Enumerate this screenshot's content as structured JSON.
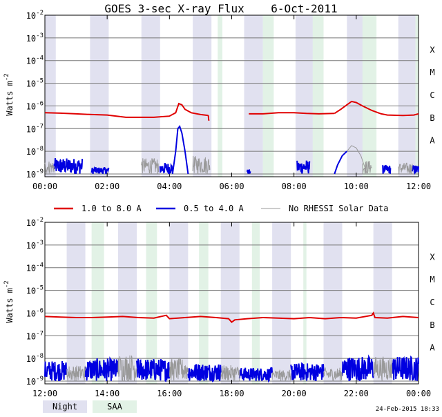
{
  "chart_data": {
    "type": "line",
    "title": "GOES 3-sec X-ray Flux",
    "date": "6-Oct-2011",
    "footer_timestamp": "24-Feb-2015 18:33",
    "ylabel": "Watts m",
    "ylabel_exponent": "-2",
    "y_scale": "log",
    "ylim_exponents": [
      -9,
      -2
    ],
    "ytick_exponents": [
      -9,
      -8,
      -7,
      -6,
      -5,
      -4,
      -3,
      -2
    ],
    "ytick_base": "10",
    "ytick_labels": [
      "10^-9",
      "10^-8",
      "10^-7",
      "10^-6",
      "10^-5",
      "10^-4",
      "10^-3",
      "10^-2"
    ],
    "flare_classes": [
      {
        "label": "X",
        "exponent": -3.5
      },
      {
        "label": "M",
        "exponent": -4.5
      },
      {
        "label": "C",
        "exponent": -5.5
      },
      {
        "label": "B",
        "exponent": -6.5
      },
      {
        "label": "A",
        "exponent": -7.5
      }
    ],
    "legend": {
      "series": [
        {
          "name": "1.0 to 8.0 A",
          "color": "#e00000"
        },
        {
          "name": "0.5 to 4.0 A",
          "color": "#0000e0"
        },
        {
          "name": "No RHESSI Solar Data",
          "color": "#999999"
        }
      ],
      "bands": [
        {
          "name": "Night",
          "color": "#e1e1f0"
        },
        {
          "name": "SAA",
          "color": "#e2f2e6"
        }
      ]
    },
    "panels": [
      {
        "xlim_hours": [
          0,
          12
        ],
        "xtick_labels": [
          "00:00",
          "02:00",
          "04:00",
          "06:00",
          "08:00",
          "10:00",
          "12:00"
        ],
        "night_intervals": [
          [
            0.0,
            0.35
          ],
          [
            1.45,
            2.05
          ],
          [
            3.1,
            3.7
          ],
          [
            4.75,
            5.35
          ],
          [
            6.4,
            7.0
          ],
          [
            8.05,
            8.65
          ],
          [
            9.7,
            10.3
          ],
          [
            11.35,
            11.95
          ]
        ],
        "saa_intervals": [
          [
            5.55,
            5.7
          ],
          [
            7.0,
            7.35
          ],
          [
            8.6,
            8.95
          ],
          [
            10.2,
            10.65
          ],
          [
            11.9,
            12.0
          ]
        ],
        "series": [
          {
            "name": "1.0 to 8.0 A",
            "color": "#e00000",
            "segments": [
              {
                "points": [
                  [
                    0,
                    -6.3
                  ],
                  [
                    0.5,
                    -6.32
                  ],
                  [
                    1.0,
                    -6.35
                  ],
                  [
                    1.5,
                    -6.38
                  ],
                  [
                    2.0,
                    -6.4
                  ],
                  [
                    2.3,
                    -6.45
                  ],
                  [
                    2.6,
                    -6.5
                  ],
                  [
                    3.0,
                    -6.5
                  ],
                  [
                    3.5,
                    -6.5
                  ],
                  [
                    4.0,
                    -6.45
                  ],
                  [
                    4.2,
                    -6.3
                  ],
                  [
                    4.3,
                    -5.9
                  ],
                  [
                    4.4,
                    -5.95
                  ],
                  [
                    4.5,
                    -6.15
                  ],
                  [
                    4.7,
                    -6.3
                  ],
                  [
                    5.0,
                    -6.38
                  ],
                  [
                    5.25,
                    -6.42
                  ]
                ]
              },
              {
                "points": [
                  [
                    5.25,
                    -6.42
                  ],
                  [
                    5.26,
                    -6.6
                  ],
                  [
                    5.27,
                    -6.65
                  ]
                ]
              },
              {
                "points": [
                  [
                    6.55,
                    -6.35
                  ],
                  [
                    7.0,
                    -6.35
                  ],
                  [
                    7.5,
                    -6.3
                  ],
                  [
                    8.0,
                    -6.3
                  ],
                  [
                    8.4,
                    -6.33
                  ],
                  [
                    8.8,
                    -6.35
                  ],
                  [
                    9.3,
                    -6.33
                  ]
                ]
              },
              {
                "points": [
                  [
                    9.3,
                    -6.33
                  ],
                  [
                    9.5,
                    -6.15
                  ],
                  [
                    9.7,
                    -5.95
                  ],
                  [
                    9.85,
                    -5.8
                  ],
                  [
                    10.0,
                    -5.85
                  ],
                  [
                    10.2,
                    -6.0
                  ]
                ]
              },
              {
                "points": [
                  [
                    10.2,
                    -6.0
                  ],
                  [
                    10.5,
                    -6.2
                  ],
                  [
                    10.8,
                    -6.35
                  ]
                ]
              },
              {
                "points": [
                  [
                    10.8,
                    -6.35
                  ],
                  [
                    11.0,
                    -6.4
                  ],
                  [
                    11.5,
                    -6.42
                  ],
                  [
                    11.85,
                    -6.4
                  ],
                  [
                    12.0,
                    -6.35
                  ]
                ]
              }
            ]
          },
          {
            "name": "0.5 to 4.0 A",
            "color": "#0000e0",
            "segments": [
              {
                "noise": true,
                "from": 0.3,
                "to": 1.2,
                "min": -9.0,
                "max": -8.3
              },
              {
                "noise": true,
                "from": 1.5,
                "to": 2.05,
                "min": -9.0,
                "max": -8.7
              },
              {
                "noise": true,
                "from": 3.7,
                "to": 4.1,
                "min": -9.0,
                "max": -8.5
              },
              {
                "points": [
                  [
                    4.1,
                    -9.0
                  ],
                  [
                    4.2,
                    -8.0
                  ],
                  [
                    4.27,
                    -7.0
                  ],
                  [
                    4.33,
                    -6.9
                  ],
                  [
                    4.4,
                    -7.2
                  ],
                  [
                    4.5,
                    -8.0
                  ],
                  [
                    4.6,
                    -9.0
                  ]
                ]
              },
              {
                "noise": true,
                "from": 6.5,
                "to": 6.6,
                "min": -9.0,
                "max": -8.8
              },
              {
                "noise": true,
                "from": 8.1,
                "to": 8.5,
                "min": -9.0,
                "max": -8.4
              },
              {
                "points": [
                  [
                    9.3,
                    -9.0
                  ],
                  [
                    9.4,
                    -8.6
                  ],
                  [
                    9.55,
                    -8.2
                  ],
                  [
                    9.7,
                    -8.0
                  ]
                ]
              },
              {
                "noise": true,
                "from": 10.85,
                "to": 11.1,
                "min": -9.0,
                "max": -8.6
              },
              {
                "noise": true,
                "from": 11.8,
                "to": 12.0,
                "min": -9.0,
                "max": -8.6
              }
            ]
          },
          {
            "name": "No RHESSI Solar Data",
            "color": "#999999",
            "segments": [
              {
                "noise": true,
                "from": 0.0,
                "to": 0.3,
                "min": -9.0,
                "max": -8.4
              },
              {
                "noise": true,
                "from": 3.1,
                "to": 3.65,
                "min": -9.0,
                "max": -8.3
              },
              {
                "noise": true,
                "from": 4.75,
                "to": 5.3,
                "min": -9.0,
                "max": -8.2
              },
              {
                "points": [
                  [
                    9.7,
                    -8.0
                  ],
                  [
                    9.85,
                    -7.75
                  ],
                  [
                    10.0,
                    -7.85
                  ],
                  [
                    10.15,
                    -8.2
                  ],
                  [
                    10.25,
                    -8.6
                  ],
                  [
                    10.35,
                    -9.0
                  ]
                ]
              },
              {
                "noise": true,
                "from": 10.2,
                "to": 10.5,
                "min": -9.0,
                "max": -8.4
              },
              {
                "noise": true,
                "from": 11.35,
                "to": 11.8,
                "min": -9.0,
                "max": -8.5
              }
            ]
          }
        ]
      },
      {
        "xlim_hours": [
          12,
          24
        ],
        "xtick_labels": [
          "12:00",
          "14:00",
          "16:00",
          "18:00",
          "20:00",
          "22:00",
          "00:00"
        ],
        "night_intervals": [
          [
            12.7,
            13.3
          ],
          [
            14.35,
            14.95
          ],
          [
            16.0,
            16.6
          ],
          [
            17.65,
            18.25
          ],
          [
            19.3,
            19.9
          ],
          [
            20.95,
            21.55
          ],
          [
            22.55,
            23.15
          ]
        ],
        "saa_intervals": [
          [
            13.5,
            13.9
          ],
          [
            15.25,
            15.6
          ],
          [
            16.95,
            17.25
          ],
          [
            18.65,
            18.9
          ],
          [
            20.3,
            20.4
          ],
          [
            24.0,
            24.0
          ]
        ],
        "series": [
          {
            "name": "1.0 to 8.0 A",
            "color": "#e00000",
            "segments": [
              {
                "points": [
                  [
                    12.0,
                    -6.15
                  ],
                  [
                    12.5,
                    -6.18
                  ],
                  [
                    13.0,
                    -6.2
                  ],
                  [
                    13.5,
                    -6.2
                  ],
                  [
                    14.0,
                    -6.18
                  ],
                  [
                    14.5,
                    -6.15
                  ],
                  [
                    15.0,
                    -6.2
                  ],
                  [
                    15.5,
                    -6.22
                  ],
                  [
                    15.9,
                    -6.1
                  ],
                  [
                    16.0,
                    -6.25
                  ],
                  [
                    16.5,
                    -6.2
                  ],
                  [
                    17.0,
                    -6.15
                  ],
                  [
                    17.5,
                    -6.2
                  ],
                  [
                    17.9,
                    -6.25
                  ],
                  [
                    18.0,
                    -6.4
                  ],
                  [
                    18.1,
                    -6.3
                  ],
                  [
                    18.5,
                    -6.25
                  ],
                  [
                    19.0,
                    -6.2
                  ],
                  [
                    19.5,
                    -6.22
                  ],
                  [
                    20.0,
                    -6.25
                  ],
                  [
                    20.5,
                    -6.2
                  ],
                  [
                    21.0,
                    -6.25
                  ],
                  [
                    21.5,
                    -6.2
                  ],
                  [
                    22.0,
                    -6.22
                  ],
                  [
                    22.5,
                    -6.1
                  ],
                  [
                    22.55,
                    -6.0
                  ],
                  [
                    22.6,
                    -6.2
                  ],
                  [
                    23.0,
                    -6.22
                  ],
                  [
                    23.5,
                    -6.15
                  ],
                  [
                    24.0,
                    -6.2
                  ]
                ]
              }
            ]
          },
          {
            "name": "0.5 to 4.0 A",
            "color": "#0000e0",
            "segments": [
              {
                "noise": true,
                "from": 12.0,
                "to": 12.7,
                "min": -9.0,
                "max": -8.1
              },
              {
                "noise": true,
                "from": 13.3,
                "to": 14.35,
                "min": -9.0,
                "max": -8.0
              },
              {
                "noise": true,
                "from": 14.95,
                "to": 16.0,
                "min": -9.0,
                "max": -8.0
              },
              {
                "noise": true,
                "from": 16.6,
                "to": 17.65,
                "min": -9.0,
                "max": -8.2
              },
              {
                "noise": true,
                "from": 18.25,
                "to": 19.3,
                "min": -9.0,
                "max": -8.4
              },
              {
                "noise": true,
                "from": 19.9,
                "to": 20.95,
                "min": -9.0,
                "max": -8.2
              },
              {
                "noise": true,
                "from": 21.55,
                "to": 22.55,
                "min": -9.0,
                "max": -7.9
              },
              {
                "noise": true,
                "from": 23.15,
                "to": 24.0,
                "min": -9.0,
                "max": -7.9
              }
            ]
          },
          {
            "name": "No RHESSI Solar Data",
            "color": "#999999",
            "segments": [
              {
                "noise": true,
                "from": 12.7,
                "to": 13.3,
                "min": -9.0,
                "max": -8.3
              },
              {
                "noise": true,
                "from": 14.35,
                "to": 14.95,
                "min": -9.0,
                "max": -7.8
              },
              {
                "noise": true,
                "from": 16.0,
                "to": 16.6,
                "min": -9.0,
                "max": -8.0
              },
              {
                "noise": true,
                "from": 17.65,
                "to": 18.25,
                "min": -9.0,
                "max": -8.3
              },
              {
                "noise": true,
                "from": 19.3,
                "to": 19.9,
                "min": -9.0,
                "max": -8.5
              },
              {
                "noise": true,
                "from": 20.95,
                "to": 21.55,
                "min": -9.0,
                "max": -8.4
              },
              {
                "noise": true,
                "from": 22.55,
                "to": 23.15,
                "min": -9.0,
                "max": -7.9
              }
            ]
          }
        ]
      }
    ]
  }
}
